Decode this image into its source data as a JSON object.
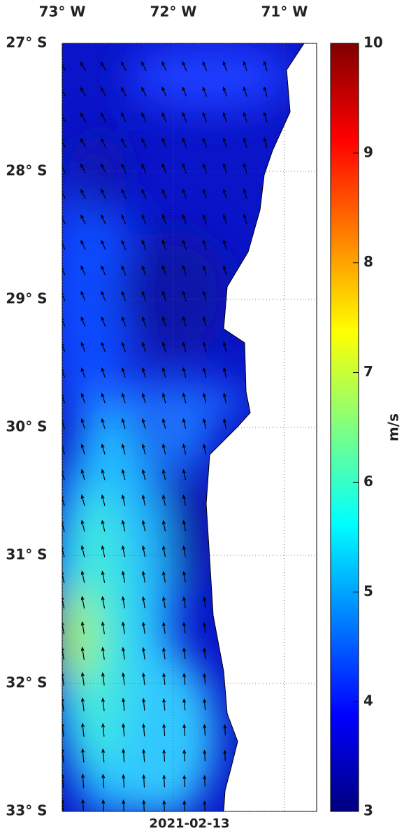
{
  "map": {
    "date": "2021-02-13",
    "lonlim": [
      -73,
      -70.71
    ],
    "latlim": [
      -33,
      -27
    ],
    "lon_ticks": [
      {
        "value": -73,
        "label": "73° W"
      },
      {
        "value": -72,
        "label": "72° W"
      },
      {
        "value": -71,
        "label": "71° W"
      }
    ],
    "lat_ticks": [
      {
        "value": -27,
        "label": "27° S"
      },
      {
        "value": -28,
        "label": "28° S"
      },
      {
        "value": -29,
        "label": "29° S"
      },
      {
        "value": -30,
        "label": "30° S"
      },
      {
        "value": -31,
        "label": "31° S"
      },
      {
        "value": -32,
        "label": "32° S"
      },
      {
        "value": -33,
        "label": "33° S"
      }
    ],
    "colorbar": {
      "range": [
        3,
        10
      ],
      "ticks": [
        3,
        4,
        5,
        6,
        7,
        8,
        9,
        10
      ],
      "unit": "m/s"
    }
  }
}
